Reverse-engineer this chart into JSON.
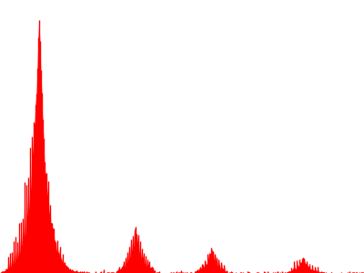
{
  "bar_color": "#ff0000",
  "background_color": "#ffffff",
  "figsize": [
    4.0,
    3.0
  ],
  "dpi": 100,
  "n_points": 400,
  "seed": 7
}
